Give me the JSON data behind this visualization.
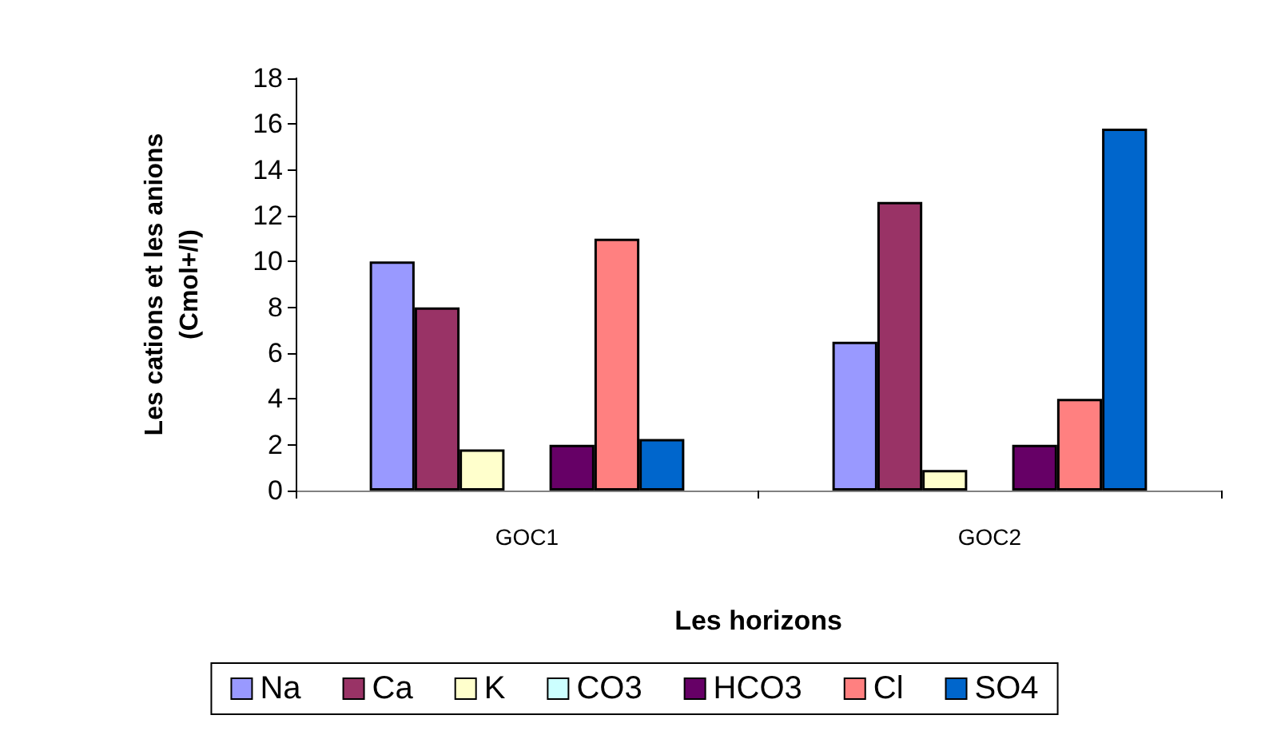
{
  "chart_data": {
    "type": "bar",
    "xlabel": "Les horizons",
    "ylabel": "Les cations et les anions\n(Cmol+/l)",
    "categories": [
      "GOC1",
      "GOC2"
    ],
    "series": [
      {
        "name": "Na",
        "color": "#9999ff",
        "values": [
          10,
          6.5
        ]
      },
      {
        "name": "Ca",
        "color": "#993366",
        "values": [
          8,
          12.6
        ]
      },
      {
        "name": "K",
        "color": "#ffffcc",
        "values": [
          1.8,
          0.9
        ]
      },
      {
        "name": "CO3",
        "color": "#ccffff",
        "values": [
          null,
          null
        ]
      },
      {
        "name": "HCO3",
        "color": "#660066",
        "values": [
          2,
          2
        ]
      },
      {
        "name": "Cl",
        "color": "#ff8080",
        "values": [
          11,
          4
        ]
      },
      {
        "name": "SO4",
        "color": "#0066cc",
        "values": [
          2.25,
          15.8
        ]
      }
    ],
    "ylim": [
      0,
      18
    ],
    "yticks": [
      0,
      2,
      4,
      6,
      8,
      10,
      12,
      14,
      16,
      18
    ],
    "grid": false,
    "legend": "bottom"
  }
}
